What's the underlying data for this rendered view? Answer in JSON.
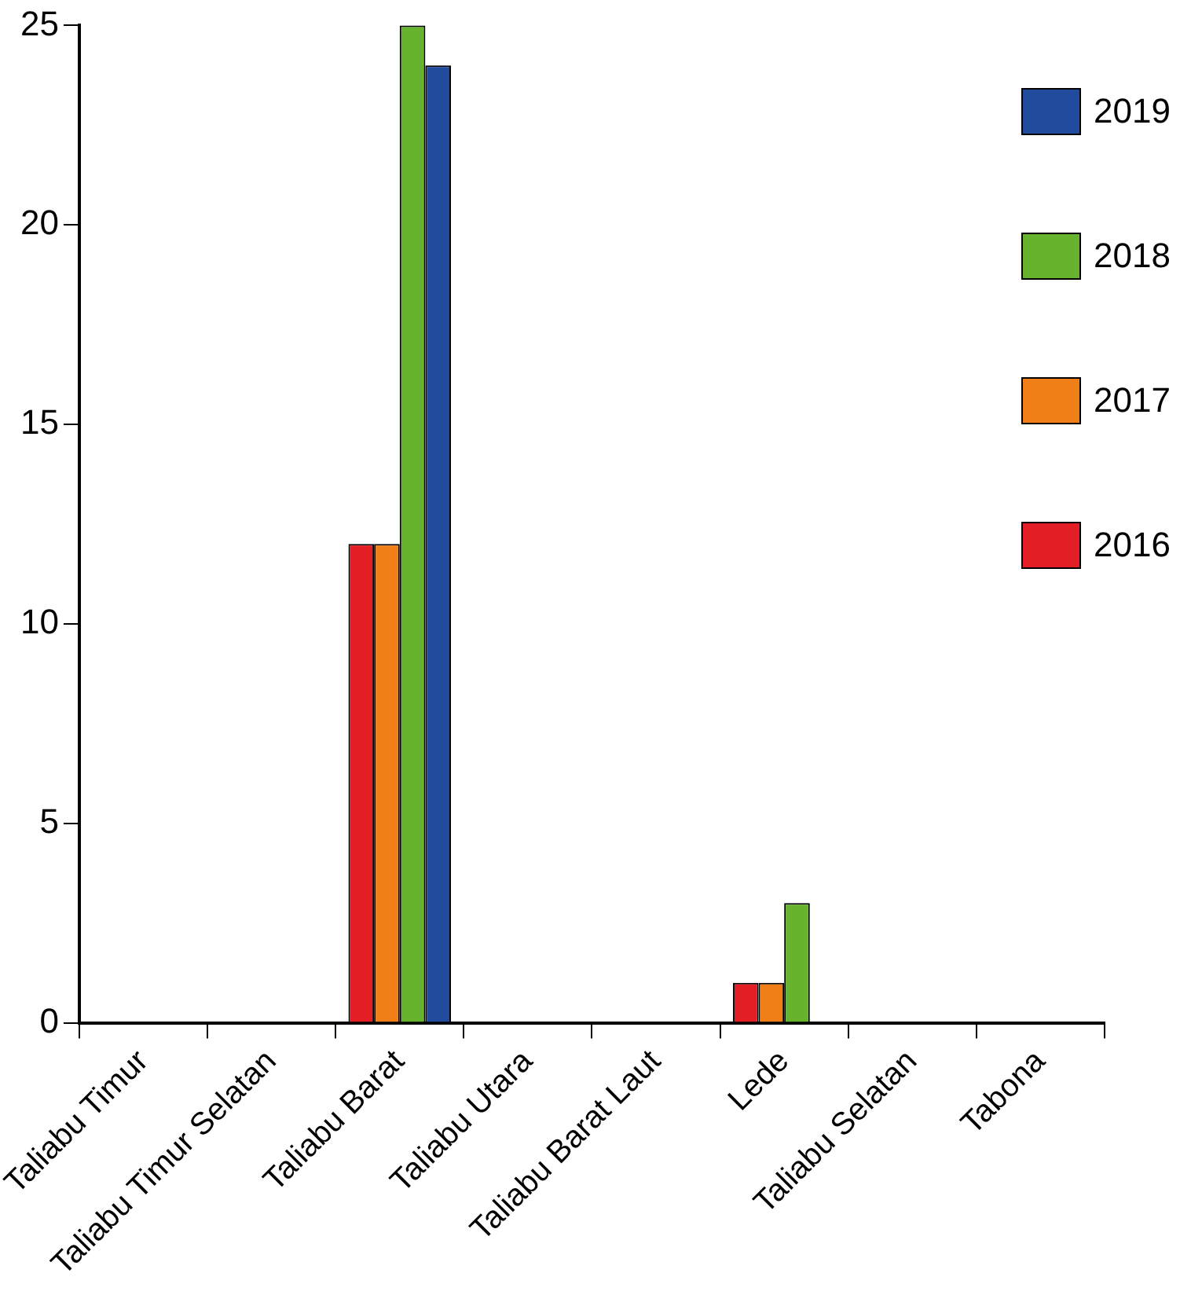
{
  "chart_data": {
    "type": "bar",
    "categories": [
      "Taliabu Timur",
      "Taliabu Timur Selatan",
      "Taliabu Barat",
      "Taliabu Utara",
      "Taliabu Barat Laut",
      "Lede",
      "Taliabu Selatan",
      "Tabona"
    ],
    "series": [
      {
        "name": "2016",
        "color": "#e41e25",
        "values": [
          0,
          0,
          12,
          0,
          0,
          1,
          0,
          0
        ]
      },
      {
        "name": "2017",
        "color": "#f07f17",
        "values": [
          0,
          0,
          12,
          0,
          0,
          1,
          0,
          0
        ]
      },
      {
        "name": "2018",
        "color": "#67b32e",
        "values": [
          0,
          0,
          25,
          0,
          0,
          3,
          0,
          0
        ]
      },
      {
        "name": "2019",
        "color": "#214b9c",
        "values": [
          0,
          0,
          24,
          0,
          0,
          0,
          0,
          0
        ]
      }
    ],
    "ylim": [
      0,
      25
    ],
    "yticks": [
      0,
      5,
      10,
      15,
      20,
      25
    ],
    "grid": false,
    "legend": "top right"
  }
}
